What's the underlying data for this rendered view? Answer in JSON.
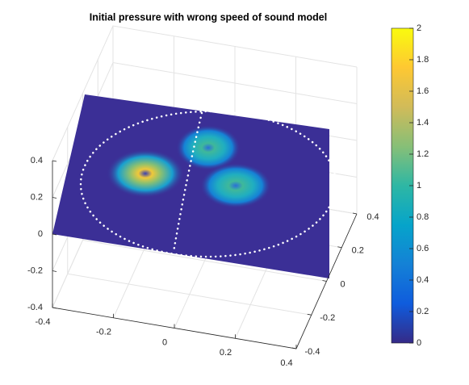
{
  "chart_data": {
    "type": "surface",
    "title": "Initial pressure with wrong speed of sound model",
    "xlim": [
      -0.4,
      0.4
    ],
    "xticks": [
      -0.4,
      -0.2,
      0,
      0.2,
      0.4
    ],
    "ylim": [
      -0.4,
      0.4
    ],
    "yticks": [
      -0.4,
      -0.2,
      0,
      0.2,
      0.4
    ],
    "zlim": [
      -0.4,
      0.4
    ],
    "zticks": [
      -0.4,
      -0.2,
      0,
      0.2,
      0.4
    ],
    "clim": [
      0,
      2
    ],
    "cticks": [
      0,
      0.2,
      0.4,
      0.6,
      0.8,
      1,
      1.2,
      1.4,
      1.6,
      1.8,
      2
    ],
    "colormap": "parula",
    "grid": true
  }
}
